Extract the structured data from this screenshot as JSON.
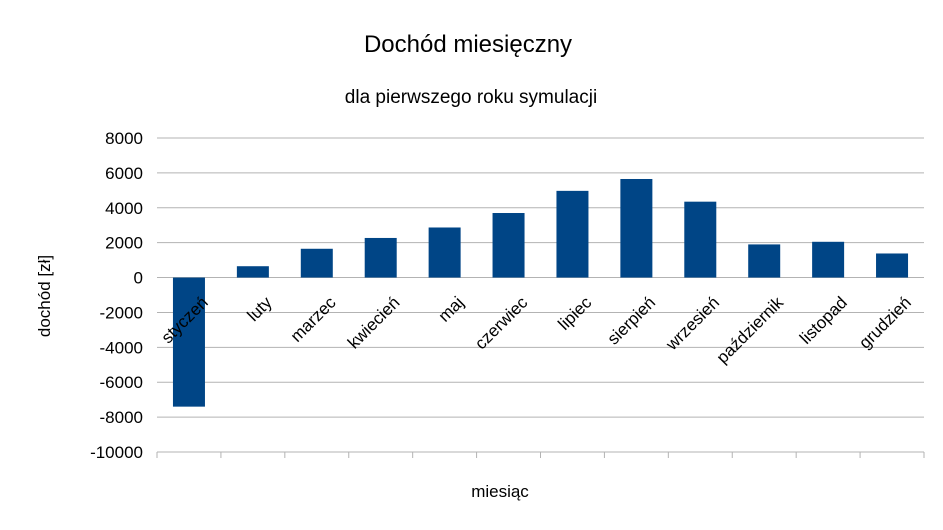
{
  "chart_data": {
    "type": "bar",
    "title": "Dochód miesięczny",
    "subtitle": "dla pierwszego roku symulacji",
    "xlabel": "miesiąc",
    "ylabel": "dochód [zł]",
    "ylim": [
      -10000,
      8000
    ],
    "ytick_step": 2000,
    "yticks": [
      "8000",
      "6000",
      "4000",
      "2000",
      "0",
      "-2000",
      "-4000",
      "-6000",
      "-8000",
      "-10000"
    ],
    "grid": true,
    "legend": "none",
    "bar_color": "#004586",
    "categories": [
      "styczeń",
      "luty",
      "marzec",
      "kwiecień",
      "maj",
      "czerwiec",
      "lipiec",
      "sierpień",
      "wrzesień",
      "październik",
      "listopad",
      "grudzień"
    ],
    "series": [
      {
        "values": [
          -7400,
          650,
          1650,
          2270,
          2870,
          3700,
          4970,
          5650,
          4350,
          1900,
          2050,
          1380
        ]
      }
    ]
  }
}
